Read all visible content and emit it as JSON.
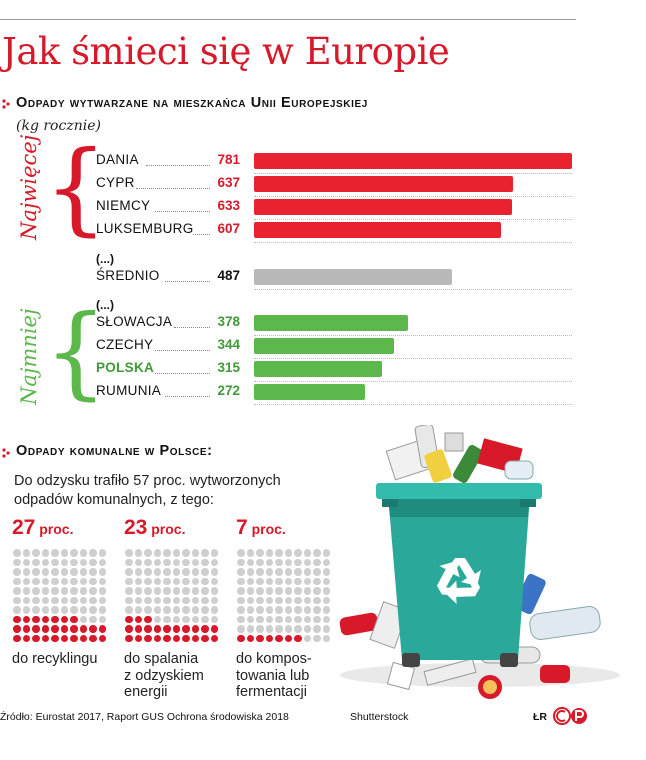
{
  "title": "Jak śmieci się w Europie",
  "colors": {
    "accent": "#d7192a",
    "green": "#4caf50",
    "gray": "#b9b9b9",
    "trash_bin": "#2aa99a"
  },
  "section1": {
    "heading": "Odpady wytwarzane na mieszkańca Unii Europejskiej",
    "subtitle": "(kg rocznie)"
  },
  "group_labels": {
    "top": "Najwięcej",
    "bottom": "Najmniej"
  },
  "ellipsis": "(...)",
  "chart_data": {
    "type": "bar",
    "unit": "kg rocznie",
    "xlim": [
      0,
      781
    ],
    "groups": [
      {
        "label": "Najwięcej",
        "color": "#e8222e",
        "items": [
          {
            "category": "DANIA",
            "value": 781
          },
          {
            "category": "CYPR",
            "value": 637
          },
          {
            "category": "NIEMCY",
            "value": 633
          },
          {
            "category": "LUKSEMBURG",
            "value": 607
          }
        ]
      },
      {
        "label": "",
        "color": "#b9b9b9",
        "items": [
          {
            "category": "ŚREDNIO",
            "value": 487
          }
        ]
      },
      {
        "label": "Najmniej",
        "color": "#5cb84a",
        "items": [
          {
            "category": "SŁOWACJA",
            "value": 378
          },
          {
            "category": "CZECHY",
            "value": 344
          },
          {
            "category": "POLSKA",
            "value": 315
          },
          {
            "category": "RUMUNIA",
            "value": 272
          }
        ]
      }
    ]
  },
  "section2": {
    "heading": "Odpady komunalne w Polsce:",
    "body": "Do odzysku trafiło 57 proc. wytworzonych odpadów komunalnych, z tego:",
    "stats": [
      {
        "value": "27",
        "unit": "proc.",
        "filled": 27,
        "line1": "do recyklingu",
        "line2": "",
        "line3": ""
      },
      {
        "value": "23",
        "unit": "proc.",
        "filled": 23,
        "line1": "do spalania",
        "line2": "z odzyskiem",
        "line3": "energii"
      },
      {
        "value": "7",
        "unit": "proc.",
        "filled": 7,
        "line1": "do kompos-",
        "line2": "towania lub",
        "line3": "fermentacji"
      }
    ]
  },
  "footer": {
    "source": "Źródło: Eurostat 2017, Raport GUS Ochrona środowiska 2018",
    "image_credit": "Shutterstock",
    "author": "ŁR",
    "logo": "CP"
  }
}
